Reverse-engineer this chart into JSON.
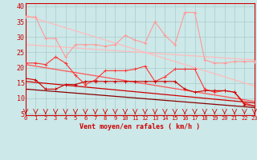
{
  "x": [
    0,
    1,
    2,
    3,
    4,
    5,
    6,
    7,
    8,
    9,
    10,
    11,
    12,
    13,
    14,
    15,
    16,
    17,
    18,
    19,
    20,
    21,
    22,
    23
  ],
  "line1": [
    36.5,
    36.5,
    29.5,
    29.5,
    23.5,
    27.5,
    27.5,
    27.5,
    27.0,
    27.5,
    30.5,
    29.0,
    28.0,
    35.0,
    30.5,
    27.5,
    38.0,
    38.0,
    22.5,
    21.5,
    21.5,
    22.0,
    22.0,
    22.0
  ],
  "line2": [
    21.5,
    21.5,
    21.0,
    23.5,
    21.5,
    17.5,
    14.5,
    16.0,
    19.0,
    19.0,
    19.0,
    19.5,
    20.5,
    15.5,
    17.0,
    19.5,
    19.5,
    19.5,
    13.0,
    12.0,
    12.5,
    12.0,
    8.5,
    7.5
  ],
  "line3": [
    16.5,
    16.0,
    13.0,
    13.0,
    14.5,
    14.5,
    15.5,
    15.5,
    15.5,
    15.5,
    15.5,
    15.5,
    15.5,
    15.5,
    15.5,
    15.5,
    13.0,
    12.0,
    12.5,
    12.5,
    12.5,
    12.0,
    8.0,
    7.5
  ],
  "trend1": [
    37.0,
    14.0
  ],
  "trend2": [
    27.5,
    22.5
  ],
  "trend3": [
    21.0,
    9.0
  ],
  "trend4": [
    15.5,
    8.5
  ],
  "trend5": [
    13.0,
    7.0
  ],
  "bg_color": "#cce8e8",
  "grid_color": "#aacccc",
  "line1_color": "#ff9999",
  "line2_color": "#ff3333",
  "line3_color": "#cc0000",
  "trend1_color": "#ffbbbb",
  "trend2_color": "#ffbbbb",
  "trend3_color": "#ff5555",
  "trend4_color": "#cc0000",
  "trend5_color": "#880000",
  "arrow_color": "#cc0000",
  "xlabel": "Vent moyen/en rafales ( km/h )",
  "xlim": [
    0,
    23
  ],
  "ylim": [
    4.5,
    41
  ],
  "yticks": [
    5,
    10,
    15,
    20,
    25,
    30,
    35,
    40
  ]
}
